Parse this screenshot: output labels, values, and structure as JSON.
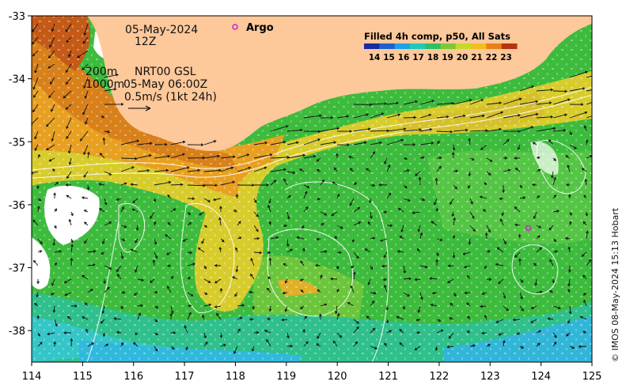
{
  "map": {
    "date": "05-May-2024",
    "time": "12Z",
    "contour_label": "200m",
    "contour_label_2": "1000m",
    "product": "NRT00 GSL",
    "valid_time": "05-May 06:00Z",
    "scale_label": "0.5m/s (1kt 24h)",
    "legend_argo": "Argo",
    "credit": "© IMOS 08-May-2024 15:13 Hobart"
  },
  "colorbar": {
    "title": "Filled 4h comp, p50, All Sats",
    "labels": [
      "14",
      "15",
      "16",
      "17",
      "18",
      "19",
      "20",
      "21",
      "22",
      "23"
    ],
    "colors": [
      "#1a2aa0",
      "#1f5fd0",
      "#1fa0e8",
      "#21c8b8",
      "#2ec060",
      "#7cc838",
      "#c8d82a",
      "#f0c020",
      "#e88018",
      "#b83210"
    ]
  },
  "axes": {
    "x_ticks": [
      "114",
      "115",
      "116",
      "117",
      "118",
      "119",
      "120",
      "121",
      "122",
      "123",
      "124",
      "125"
    ],
    "y_ticks": [
      "-33",
      "-34",
      "-35",
      "-36",
      "-37",
      "-38"
    ],
    "x_range": [
      114,
      125
    ],
    "y_range": [
      -38.5,
      -33
    ]
  },
  "argo_floats": [
    {
      "lon": 123.75,
      "lat": -36.37
    }
  ],
  "colors": {
    "land": "#fdc89a",
    "argo": "#cc22cc"
  }
}
